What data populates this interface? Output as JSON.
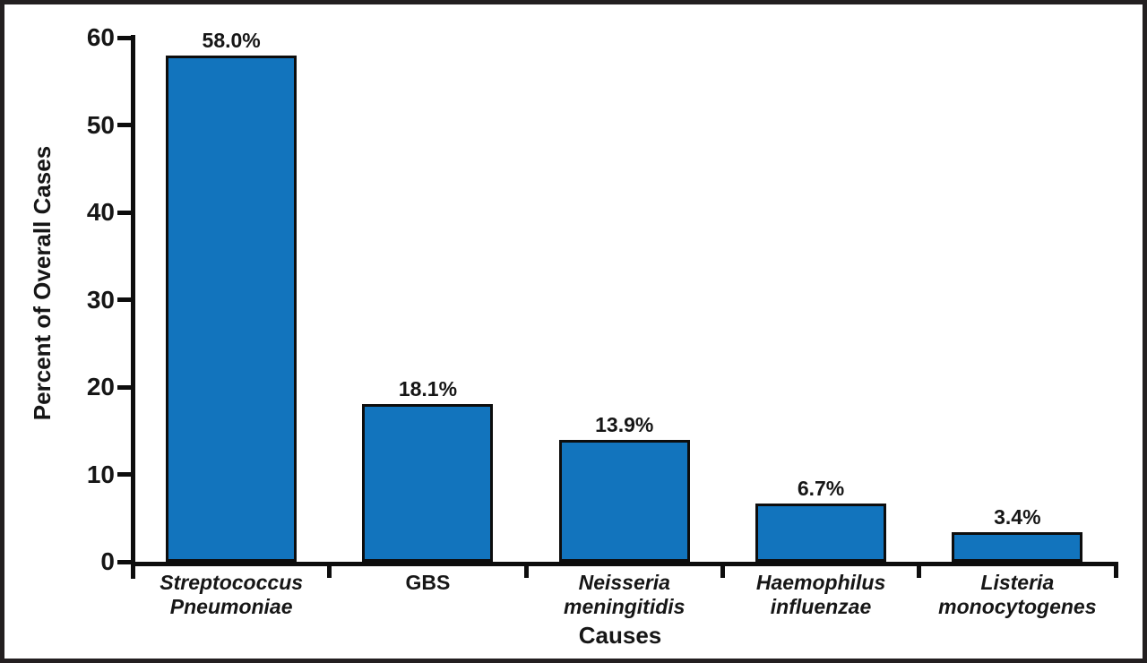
{
  "chart_data": {
    "type": "bar",
    "title": "",
    "xlabel": "Causes",
    "ylabel": "Percent of Overall Cases",
    "categories": [
      "Streptococcus Pneumoniae",
      "GBS",
      "Neisseria meningitidis",
      "Haemophilus influenzae",
      "Listeria monocytogenes"
    ],
    "category_label_lines": [
      [
        "Streptococcus",
        "Pneumoniae"
      ],
      [
        "GBS"
      ],
      [
        "Neisseria",
        "meningitidis"
      ],
      [
        "Haemophilus",
        "influenzae"
      ],
      [
        "Listeria",
        "monocytogenes"
      ]
    ],
    "category_italic": [
      true,
      false,
      true,
      true,
      true
    ],
    "values": [
      58.0,
      18.1,
      13.9,
      6.7,
      3.4
    ],
    "value_labels": [
      "58.0%",
      "18.1%",
      "13.9%",
      "6.7%",
      "3.4%"
    ],
    "y_ticks": [
      0,
      10,
      20,
      30,
      40,
      50,
      60
    ],
    "ylim": [
      0,
      60
    ],
    "grid": false,
    "legend": "none",
    "colors": {
      "bar_fill": "#1274BD",
      "bar_border": "#0D0D0D",
      "axis": "#0D0D0D",
      "text": "#161616",
      "frame_border": "#231F20",
      "background": "#FFFFFF"
    }
  }
}
